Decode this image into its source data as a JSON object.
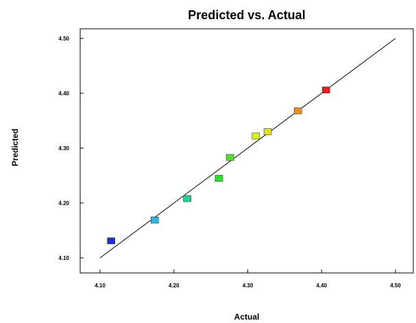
{
  "chart_data": {
    "type": "scatter",
    "title": "Predicted vs. Actual",
    "xlabel": "Actual",
    "ylabel": "Predicted",
    "xlim": [
      4.1,
      4.5
    ],
    "ylim": [
      4.1,
      4.5
    ],
    "xticks": [
      "4.10",
      "4.20",
      "4.30",
      "4.40",
      "4.50"
    ],
    "yticks": [
      "4.10",
      "4.20",
      "4.30",
      "4.40",
      "4.50"
    ],
    "grid": false,
    "reference_line": {
      "from": [
        4.1,
        4.1
      ],
      "to": [
        4.5,
        4.5
      ],
      "color": "#000000"
    },
    "points": [
      {
        "x": 4.115,
        "y": 4.131,
        "color": "#1f2ed6"
      },
      {
        "x": 4.174,
        "y": 4.169,
        "color": "#2ab8e0"
      },
      {
        "x": 4.218,
        "y": 4.208,
        "color": "#21d49a"
      },
      {
        "x": 4.261,
        "y": 4.245,
        "color": "#2ee02a"
      },
      {
        "x": 4.276,
        "y": 4.283,
        "color": "#58e02a"
      },
      {
        "x": 4.311,
        "y": 4.322,
        "color": "#d8f21c"
      },
      {
        "x": 4.327,
        "y": 4.33,
        "color": "#e2e020"
      },
      {
        "x": 4.368,
        "y": 4.368,
        "color": "#f0901c"
      },
      {
        "x": 4.406,
        "y": 4.406,
        "color": "#e0201c"
      }
    ]
  }
}
